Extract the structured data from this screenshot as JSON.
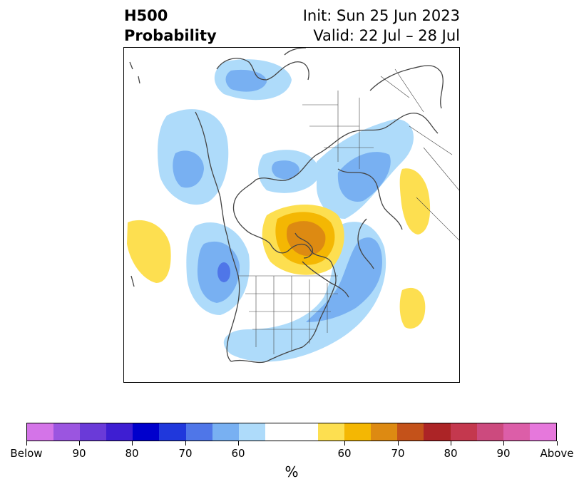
{
  "header": {
    "title_line1": "H500",
    "title_line2": "Probability",
    "init_text": "Init: Sun 25 Jun 2023",
    "valid_text": "Valid: 22 Jul – 28 Jul"
  },
  "colorbar": {
    "unit": "%",
    "colors": [
      "#d474e8",
      "#9b55e0",
      "#6a3ad8",
      "#3e1ed2",
      "#0000cc",
      "#2038dc",
      "#4f76e8",
      "#78b0f2",
      "#aedbfa",
      "#ffffff",
      "#ffffff",
      "#fddf50",
      "#f4b703",
      "#dd8a12",
      "#c4521a",
      "#ac2426",
      "#c4384e",
      "#cc4a7e",
      "#dc5ea8",
      "#e678dc"
    ],
    "tick_labels": [
      "Below",
      "90",
      "80",
      "70",
      "60",
      "60",
      "70",
      "80",
      "90",
      "Above"
    ]
  },
  "colors": {
    "below_light": "#aedbfa",
    "below_medium": "#78b0f2",
    "below_strong": "#4f76e8",
    "above_light": "#fddf50",
    "above_medium": "#f4b703",
    "above_strong": "#dd8a12",
    "coastline": "#444444"
  }
}
